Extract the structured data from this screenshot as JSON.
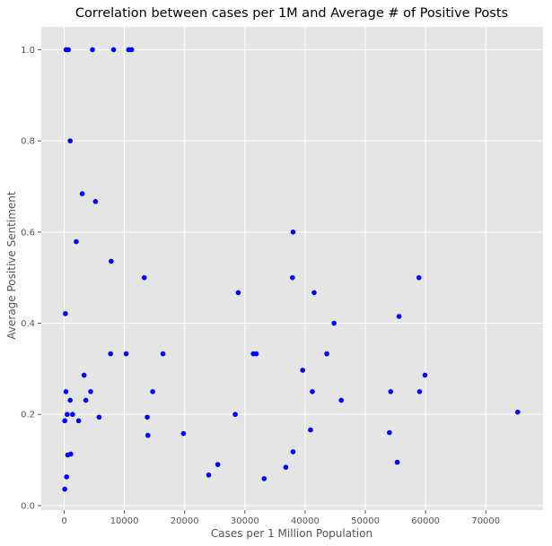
{
  "chart_data": {
    "type": "scatter",
    "title": "Correlation between cases per 1M and Average # of Positive Posts",
    "xlabel": "Cases per 1 Million Population",
    "ylabel": "Average Positive Sentiment",
    "xlim": [
      -3800,
      79500
    ],
    "ylim": [
      -0.01,
      1.05
    ],
    "xticks": [
      0,
      10000,
      20000,
      30000,
      40000,
      50000,
      60000,
      70000
    ],
    "yticks": [
      0.0,
      0.2,
      0.4,
      0.6,
      0.8,
      1.0
    ],
    "ytick_labels": [
      "0.0",
      "0.2",
      "0.4",
      "0.6",
      "0.8",
      "1.0"
    ],
    "grid": true,
    "background": "#e5e5e5",
    "marker_color": "#0000ff",
    "series": [
      {
        "x": [
          300,
          700,
          4700,
          8200,
          10700,
          11200,
          1000,
          3000,
          5200,
          2000,
          7800,
          13300,
          28900,
          37900,
          38000,
          41500,
          58900,
          55600,
          44800,
          200,
          7700,
          10300,
          16400,
          31400,
          31900,
          43600,
          3300,
          39600,
          59900,
          300,
          1000,
          3600,
          4400,
          14700,
          41200,
          46000,
          54200,
          59000,
          75300,
          100,
          500,
          1400,
          2400,
          5800,
          13800,
          28400,
          40900,
          54000,
          19800,
          13900,
          38000,
          600,
          1100,
          25500,
          55300,
          24000,
          36800,
          33200,
          400,
          100
        ],
        "y": [
          1.0,
          1.0,
          1.0,
          1.0,
          1.0,
          1.0,
          0.8,
          0.684,
          0.667,
          0.579,
          0.536,
          0.5,
          0.467,
          0.5,
          0.6,
          0.467,
          0.5,
          0.415,
          0.4,
          0.421,
          0.333,
          0.333,
          0.333,
          0.333,
          0.333,
          0.333,
          0.286,
          0.297,
          0.286,
          0.25,
          0.231,
          0.231,
          0.25,
          0.25,
          0.25,
          0.231,
          0.25,
          0.25,
          0.205,
          0.186,
          0.2,
          0.2,
          0.186,
          0.194,
          0.194,
          0.2,
          0.166,
          0.16,
          0.158,
          0.154,
          0.118,
          0.111,
          0.113,
          0.09,
          0.095,
          0.067,
          0.084,
          0.059,
          0.063,
          0.036
        ]
      }
    ]
  }
}
